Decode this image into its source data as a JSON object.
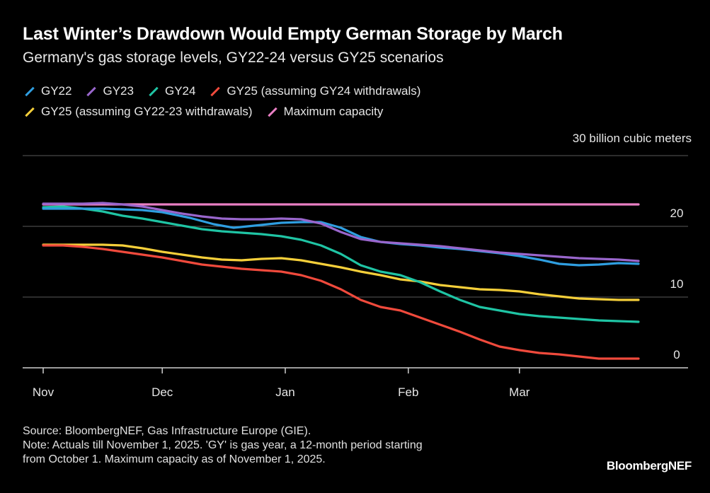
{
  "chart_data": {
    "type": "line",
    "title": "Last Winter’s Drawdown Would Empty German Storage by March",
    "subtitle": "Germany's gas storage levels, GY22-24 versus GY25 scenarios",
    "unit_label": "30 billion cubic meters",
    "ylim": [
      0,
      30
    ],
    "yticks": [
      "20",
      "10",
      "0"
    ],
    "ytick_values": [
      20,
      10,
      0
    ],
    "xlim": [
      0,
      150
    ],
    "x_tick_labels": [
      "Nov",
      "Dec",
      "Jan",
      "Feb",
      "Mar"
    ],
    "x_tick_days": [
      0,
      30,
      61,
      92,
      120
    ],
    "legend_position": "top-left",
    "series": [
      {
        "name": "GY22",
        "color": "#2f9ee0",
        "x": [
          0,
          15,
          25,
          30,
          37,
          43,
          48,
          55,
          60,
          65,
          70,
          75,
          80,
          85,
          90,
          95,
          100,
          105,
          110,
          115,
          120,
          125,
          130,
          135,
          140,
          145,
          150
        ],
        "y": [
          22.5,
          22.5,
          22.3,
          22,
          21.2,
          20.3,
          19.8,
          20.2,
          20.5,
          20.6,
          20.6,
          19.8,
          18.5,
          17.8,
          17.5,
          17.3,
          17,
          16.8,
          16.5,
          16.2,
          15.8,
          15.3,
          14.7,
          14.5,
          14.6,
          14.8,
          14.7
        ]
      },
      {
        "name": "GY23",
        "color": "#9966cc",
        "x": [
          0,
          10,
          15,
          20,
          25,
          30,
          35,
          40,
          45,
          50,
          55,
          60,
          65,
          70,
          75,
          80,
          85,
          90,
          95,
          100,
          105,
          110,
          115,
          120,
          125,
          130,
          135,
          140,
          145,
          150
        ],
        "y": [
          23.2,
          23.2,
          23.3,
          23.1,
          22.8,
          22.3,
          21.8,
          21.4,
          21.1,
          21,
          21,
          21.1,
          21,
          20.4,
          19.2,
          18.2,
          17.8,
          17.6,
          17.4,
          17.2,
          16.9,
          16.6,
          16.3,
          16.1,
          15.9,
          15.7,
          15.5,
          15.4,
          15.3,
          15.1
        ]
      },
      {
        "name": "GY24",
        "color": "#1fc4a4",
        "x": [
          0,
          5,
          10,
          15,
          20,
          25,
          30,
          35,
          40,
          45,
          50,
          55,
          60,
          65,
          70,
          75,
          80,
          85,
          90,
          95,
          100,
          105,
          110,
          115,
          120,
          125,
          130,
          135,
          140,
          145,
          150
        ],
        "y": [
          22.7,
          22.8,
          22.5,
          22.1,
          21.5,
          21.1,
          20.6,
          20.1,
          19.6,
          19.3,
          19.1,
          18.9,
          18.6,
          18.1,
          17.3,
          16.1,
          14.5,
          13.6,
          13.1,
          12.1,
          10.8,
          9.6,
          8.6,
          8.1,
          7.6,
          7.3,
          7.1,
          6.9,
          6.7,
          6.6,
          6.5
        ]
      },
      {
        "name": "GY25 (assuming GY24 withdrawals)",
        "color": "#f04a3c",
        "x": [
          0,
          5,
          10,
          15,
          20,
          25,
          30,
          35,
          40,
          45,
          50,
          55,
          60,
          65,
          70,
          75,
          80,
          85,
          90,
          95,
          100,
          105,
          110,
          115,
          120,
          125,
          130,
          135,
          140,
          145,
          150
        ],
        "y": [
          17.3,
          17.3,
          17.1,
          16.8,
          16.4,
          16,
          15.6,
          15.1,
          14.6,
          14.3,
          14,
          13.8,
          13.6,
          13.1,
          12.3,
          11.1,
          9.6,
          8.6,
          8.1,
          7.1,
          6.1,
          5.1,
          4,
          3,
          2.5,
          2.1,
          1.9,
          1.6,
          1.3,
          1.3,
          1.3
        ]
      },
      {
        "name": "GY25 (assuming GY22-23 withdrawals)",
        "color": "#f5cf3a",
        "x": [
          0,
          10,
          15,
          20,
          25,
          30,
          35,
          40,
          45,
          50,
          55,
          60,
          65,
          70,
          75,
          80,
          85,
          90,
          95,
          100,
          105,
          110,
          115,
          120,
          125,
          130,
          135,
          140,
          145,
          150
        ],
        "y": [
          17.4,
          17.4,
          17.4,
          17.3,
          16.9,
          16.4,
          16,
          15.6,
          15.3,
          15.2,
          15.4,
          15.5,
          15.2,
          14.7,
          14.2,
          13.6,
          13.1,
          12.5,
          12.2,
          11.7,
          11.4,
          11.1,
          11,
          10.8,
          10.4,
          10.1,
          9.8,
          9.7,
          9.6,
          9.6
        ]
      },
      {
        "name": "Maximum capacity",
        "color": "#e97fc4",
        "x": [
          0,
          150
        ],
        "y": [
          23.1,
          23.1
        ]
      }
    ]
  },
  "footer": {
    "source": "Source: BloombergNEF, Gas Infrastructure Europe (GIE).",
    "note_line1": "Note: Actuals till November 1, 2025. 'GY' is gas year, a 12-month period starting",
    "note_line2": "from October 1. Maximum capacity as of November 1, 2025."
  },
  "brand": "BloombergNEF"
}
